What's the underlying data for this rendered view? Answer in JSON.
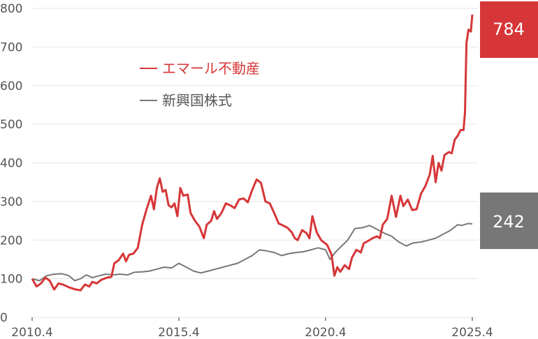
{
  "chart_data": {
    "type": "line",
    "x_tick_labels": [
      "2010.4",
      "2015.4",
      "2020.4",
      "2025.4"
    ],
    "x_ticks": [
      2010.25,
      2015.25,
      2020.25,
      2025.25
    ],
    "xlim": [
      2010.25,
      2025.25
    ],
    "ylim": [
      0,
      800
    ],
    "y_ticks": [
      0,
      100,
      200,
      300,
      400,
      500,
      600,
      700,
      800
    ],
    "grid": true,
    "legend_position": "top-left",
    "series": [
      {
        "name": "エマール不動産",
        "color": "#d63638",
        "end_label": "784",
        "points": [
          [
            2010.25,
            100
          ],
          [
            2010.4,
            80
          ],
          [
            2010.55,
            88
          ],
          [
            2010.7,
            103
          ],
          [
            2010.85,
            95
          ],
          [
            2011.0,
            72
          ],
          [
            2011.15,
            88
          ],
          [
            2011.3,
            85
          ],
          [
            2011.5,
            78
          ],
          [
            2011.7,
            73
          ],
          [
            2011.9,
            70
          ],
          [
            2012.05,
            85
          ],
          [
            2012.2,
            80
          ],
          [
            2012.3,
            92
          ],
          [
            2012.45,
            88
          ],
          [
            2012.6,
            97
          ],
          [
            2012.8,
            103
          ],
          [
            2012.95,
            105
          ],
          [
            2013.05,
            140
          ],
          [
            2013.2,
            148
          ],
          [
            2013.35,
            165
          ],
          [
            2013.45,
            145
          ],
          [
            2013.55,
            162
          ],
          [
            2013.7,
            165
          ],
          [
            2013.85,
            180
          ],
          [
            2014.0,
            240
          ],
          [
            2014.15,
            280
          ],
          [
            2014.3,
            315
          ],
          [
            2014.4,
            280
          ],
          [
            2014.5,
            335
          ],
          [
            2014.6,
            360
          ],
          [
            2014.7,
            325
          ],
          [
            2014.8,
            330
          ],
          [
            2014.9,
            290
          ],
          [
            2015.0,
            285
          ],
          [
            2015.1,
            295
          ],
          [
            2015.2,
            262
          ],
          [
            2015.3,
            335
          ],
          [
            2015.4,
            315
          ],
          [
            2015.55,
            318
          ],
          [
            2015.65,
            270
          ],
          [
            2015.8,
            250
          ],
          [
            2015.95,
            235
          ],
          [
            2016.1,
            205
          ],
          [
            2016.2,
            240
          ],
          [
            2016.35,
            250
          ],
          [
            2016.45,
            275
          ],
          [
            2016.55,
            255
          ],
          [
            2016.7,
            270
          ],
          [
            2016.85,
            295
          ],
          [
            2017.0,
            290
          ],
          [
            2017.15,
            283
          ],
          [
            2017.3,
            305
          ],
          [
            2017.45,
            308
          ],
          [
            2017.6,
            298
          ],
          [
            2017.75,
            330
          ],
          [
            2017.9,
            357
          ],
          [
            2018.05,
            348
          ],
          [
            2018.2,
            300
          ],
          [
            2018.35,
            295
          ],
          [
            2018.5,
            270
          ],
          [
            2018.65,
            243
          ],
          [
            2018.8,
            238
          ],
          [
            2018.95,
            232
          ],
          [
            2019.1,
            220
          ],
          [
            2019.2,
            205
          ],
          [
            2019.3,
            200
          ],
          [
            2019.45,
            226
          ],
          [
            2019.6,
            218
          ],
          [
            2019.7,
            205
          ],
          [
            2019.8,
            262
          ],
          [
            2019.95,
            220
          ],
          [
            2020.1,
            200
          ],
          [
            2020.3,
            188
          ],
          [
            2020.45,
            163
          ],
          [
            2020.55,
            108
          ],
          [
            2020.65,
            130
          ],
          [
            2020.75,
            118
          ],
          [
            2020.9,
            135
          ],
          [
            2021.05,
            125
          ],
          [
            2021.15,
            155
          ],
          [
            2021.3,
            175
          ],
          [
            2021.45,
            168
          ],
          [
            2021.55,
            192
          ],
          [
            2021.7,
            198
          ],
          [
            2021.85,
            205
          ],
          [
            2022.0,
            210
          ],
          [
            2022.1,
            205
          ],
          [
            2022.2,
            240
          ],
          [
            2022.35,
            255
          ],
          [
            2022.5,
            315
          ],
          [
            2022.65,
            260
          ],
          [
            2022.8,
            315
          ],
          [
            2022.9,
            288
          ],
          [
            2023.05,
            305
          ],
          [
            2023.2,
            278
          ],
          [
            2023.35,
            280
          ],
          [
            2023.5,
            320
          ],
          [
            2023.65,
            340
          ],
          [
            2023.8,
            370
          ],
          [
            2023.9,
            418
          ],
          [
            2024.0,
            350
          ],
          [
            2024.1,
            400
          ],
          [
            2024.2,
            380
          ],
          [
            2024.3,
            420
          ],
          [
            2024.45,
            428
          ],
          [
            2024.55,
            425
          ],
          [
            2024.65,
            460
          ],
          [
            2024.75,
            470
          ],
          [
            2024.85,
            485
          ],
          [
            2024.95,
            485
          ],
          [
            2025.0,
            530
          ],
          [
            2025.05,
            710
          ],
          [
            2025.12,
            745
          ],
          [
            2025.2,
            740
          ],
          [
            2025.25,
            784
          ]
        ]
      },
      {
        "name": "新興国株式",
        "color": "#777777",
        "end_label": "242",
        "points": [
          [
            2010.25,
            100
          ],
          [
            2010.5,
            95
          ],
          [
            2010.75,
            108
          ],
          [
            2011.0,
            112
          ],
          [
            2011.25,
            113
          ],
          [
            2011.5,
            108
          ],
          [
            2011.7,
            95
          ],
          [
            2011.9,
            100
          ],
          [
            2012.1,
            110
          ],
          [
            2012.3,
            103
          ],
          [
            2012.5,
            107
          ],
          [
            2012.75,
            112
          ],
          [
            2013.0,
            110
          ],
          [
            2013.25,
            112
          ],
          [
            2013.5,
            110
          ],
          [
            2013.75,
            117
          ],
          [
            2014.0,
            118
          ],
          [
            2014.25,
            120
          ],
          [
            2014.5,
            125
          ],
          [
            2014.75,
            130
          ],
          [
            2015.0,
            128
          ],
          [
            2015.25,
            140
          ],
          [
            2015.5,
            130
          ],
          [
            2015.75,
            120
          ],
          [
            2016.0,
            115
          ],
          [
            2016.25,
            120
          ],
          [
            2016.5,
            125
          ],
          [
            2016.75,
            130
          ],
          [
            2017.0,
            135
          ],
          [
            2017.25,
            140
          ],
          [
            2017.5,
            150
          ],
          [
            2017.75,
            160
          ],
          [
            2018.0,
            175
          ],
          [
            2018.25,
            172
          ],
          [
            2018.5,
            168
          ],
          [
            2018.75,
            160
          ],
          [
            2019.0,
            165
          ],
          [
            2019.25,
            168
          ],
          [
            2019.5,
            170
          ],
          [
            2019.75,
            175
          ],
          [
            2020.0,
            180
          ],
          [
            2020.25,
            175
          ],
          [
            2020.4,
            150
          ],
          [
            2020.6,
            170
          ],
          [
            2020.8,
            185
          ],
          [
            2021.0,
            200
          ],
          [
            2021.25,
            230
          ],
          [
            2021.5,
            232
          ],
          [
            2021.75,
            238
          ],
          [
            2022.0,
            228
          ],
          [
            2022.25,
            218
          ],
          [
            2022.5,
            210
          ],
          [
            2022.75,
            195
          ],
          [
            2023.0,
            185
          ],
          [
            2023.25,
            193
          ],
          [
            2023.5,
            195
          ],
          [
            2023.75,
            200
          ],
          [
            2024.0,
            205
          ],
          [
            2024.25,
            215
          ],
          [
            2024.5,
            225
          ],
          [
            2024.75,
            240
          ],
          [
            2024.9,
            238
          ],
          [
            2025.1,
            243
          ],
          [
            2025.25,
            242
          ]
        ]
      }
    ]
  }
}
